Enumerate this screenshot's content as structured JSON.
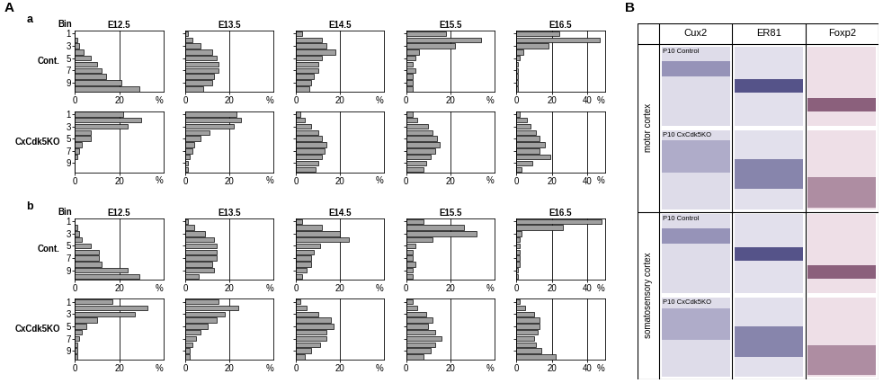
{
  "chart_data": [
    {
      "type": "bar",
      "orientation": "horizontal",
      "title": "E12.5",
      "categories": [
        "1",
        null,
        "3",
        null,
        "5",
        null,
        "7",
        null,
        "9",
        null
      ],
      "values": [
        0,
        1,
        2,
        4,
        7,
        10,
        12,
        14,
        21,
        29
      ],
      "xlim": [
        0,
        40
      ],
      "xticks": [
        0,
        20
      ],
      "xlabel": "%",
      "color": "#a0a0a0",
      "grid": true,
      "tick_labels": true
    },
    {
      "type": "bar",
      "orientation": "horizontal",
      "title": "E13.5",
      "categories": [
        "1",
        null,
        "3",
        null,
        "5",
        null,
        "7",
        null,
        "9",
        null
      ],
      "values": [
        1,
        3,
        7,
        12,
        14,
        15,
        15,
        13,
        12,
        8
      ],
      "xlim": [
        0,
        40
      ],
      "xticks": [
        0,
        20
      ],
      "xlabel": "%",
      "color": "#a0a0a0",
      "grid": true,
      "tick_labels": "x"
    },
    {
      "type": "bar",
      "orientation": "horizontal",
      "title": "E14.5",
      "categories": [
        "1",
        null,
        "3",
        null,
        "5",
        null,
        "7",
        null,
        "9",
        null
      ],
      "values": [
        3,
        12,
        14,
        18,
        12,
        10,
        10,
        8,
        7,
        6
      ],
      "xlim": [
        0,
        40
      ],
      "xticks": [
        0,
        20
      ],
      "xlabel": "%",
      "color": "#a0a0a0",
      "grid": true,
      "tick_labels": "x"
    },
    {
      "type": "bar",
      "orientation": "horizontal",
      "title": "E15.5",
      "categories": [
        "1",
        null,
        "3",
        null,
        "5",
        null,
        "7",
        null,
        "9",
        null
      ],
      "values": [
        18,
        34,
        22,
        6,
        4,
        3,
        4,
        3,
        3,
        3
      ],
      "xlim": [
        0,
        40
      ],
      "xticks": [
        0,
        20
      ],
      "xlabel": "%",
      "color": "#a0a0a0",
      "grid": true,
      "tick_labels": "x"
    },
    {
      "type": "bar",
      "orientation": "horizontal",
      "title": "E16.5",
      "categories": [
        "1",
        null,
        "3",
        null,
        "5",
        null,
        "7",
        null,
        "9",
        null
      ],
      "values": [
        24,
        47,
        18,
        4,
        2,
        1,
        1,
        1,
        1,
        1
      ],
      "xlim": [
        0,
        50
      ],
      "xticks": [
        0,
        20,
        40
      ],
      "xlabel": "%",
      "color": "#a0a0a0",
      "grid": true,
      "tick_labels": "x"
    },
    {
      "type": "bar",
      "orientation": "horizontal",
      "categories": [
        "1",
        null,
        "3",
        null,
        "5",
        null,
        "7",
        null,
        "9",
        null
      ],
      "values": [
        22,
        30,
        24,
        7,
        7,
        3,
        2,
        1,
        0,
        0
      ],
      "xlim": [
        0,
        40
      ],
      "xticks": [
        0,
        20
      ],
      "xlabel": "%",
      "color": "#a0a0a0",
      "grid": true,
      "tick_labels": true
    },
    {
      "type": "bar",
      "orientation": "horizontal",
      "categories": [
        "1",
        null,
        "3",
        null,
        "5",
        null,
        "7",
        null,
        "9",
        null
      ],
      "values": [
        23,
        25,
        22,
        11,
        7,
        4,
        3,
        2,
        1,
        1
      ],
      "xlim": [
        0,
        40
      ],
      "xticks": [
        0,
        20
      ],
      "xlabel": "%",
      "color": "#a0a0a0",
      "grid": true,
      "tick_labels": "x"
    },
    {
      "type": "bar",
      "orientation": "horizontal",
      "categories": [
        "1",
        null,
        "3",
        null,
        "5",
        null,
        "7",
        null,
        "9",
        null
      ],
      "values": [
        2,
        4,
        7,
        10,
        12,
        14,
        13,
        12,
        10,
        9
      ],
      "xlim": [
        0,
        40
      ],
      "xticks": [
        0,
        20
      ],
      "xlabel": "%",
      "color": "#a0a0a0",
      "grid": true,
      "tick_labels": "x"
    },
    {
      "type": "bar",
      "orientation": "horizontal",
      "categories": [
        "1",
        null,
        "3",
        null,
        "5",
        null,
        "7",
        null,
        "9",
        null
      ],
      "values": [
        3,
        5,
        10,
        12,
        14,
        15,
        13,
        11,
        9,
        8
      ],
      "xlim": [
        0,
        40
      ],
      "xticks": [
        0,
        20
      ],
      "xlabel": "%",
      "color": "#a0a0a0",
      "grid": true,
      "tick_labels": "x"
    },
    {
      "type": "bar",
      "orientation": "horizontal",
      "categories": [
        "1",
        null,
        "3",
        null,
        "5",
        null,
        "7",
        null,
        "9",
        null
      ],
      "values": [
        2,
        6,
        8,
        11,
        13,
        16,
        13,
        19,
        9,
        3
      ],
      "xlim": [
        0,
        50
      ],
      "xticks": [
        0,
        20,
        40
      ],
      "xlabel": "%",
      "color": "#a0a0a0",
      "grid": true,
      "tick_labels": "x"
    },
    {
      "type": "bar",
      "orientation": "horizontal",
      "title": "E12.5",
      "categories": [
        "1",
        null,
        "3",
        null,
        "5",
        null,
        "7",
        null,
        "9",
        null
      ],
      "values": [
        0,
        1,
        2,
        3,
        7,
        11,
        11,
        12,
        24,
        29
      ],
      "xlim": [
        0,
        40
      ],
      "xticks": [
        0,
        20
      ],
      "xlabel": "%",
      "color": "#a0a0a0",
      "grid": true,
      "tick_labels": true
    },
    {
      "type": "bar",
      "orientation": "horizontal",
      "title": "E13.5",
      "categories": [
        "1",
        null,
        "3",
        null,
        "5",
        null,
        "7",
        null,
        "9",
        null
      ],
      "values": [
        1,
        4,
        9,
        13,
        14,
        14,
        14,
        12,
        13,
        6
      ],
      "xlim": [
        0,
        40
      ],
      "xticks": [
        0,
        20
      ],
      "xlabel": "%",
      "color": "#a0a0a0",
      "grid": true,
      "tick_labels": "x"
    },
    {
      "type": "bar",
      "orientation": "horizontal",
      "title": "E14.5",
      "categories": [
        "1",
        null,
        "3",
        null,
        "5",
        null,
        "7",
        null,
        "9",
        null
      ],
      "values": [
        3,
        12,
        20,
        24,
        11,
        8,
        7,
        7,
        5,
        3
      ],
      "xlim": [
        0,
        40
      ],
      "xticks": [
        0,
        20
      ],
      "xlabel": "%",
      "color": "#a0a0a0",
      "grid": true,
      "tick_labels": "x"
    },
    {
      "type": "bar",
      "orientation": "horizontal",
      "title": "E15.5",
      "categories": [
        "1",
        null,
        "3",
        null,
        "5",
        null,
        "7",
        null,
        "9",
        null
      ],
      "values": [
        8,
        26,
        32,
        12,
        4,
        3,
        3,
        4,
        3,
        3
      ],
      "xlim": [
        0,
        40
      ],
      "xticks": [
        0,
        20
      ],
      "xlabel": "%",
      "color": "#a0a0a0",
      "grid": true,
      "tick_labels": "x"
    },
    {
      "type": "bar",
      "orientation": "horizontal",
      "title": "E16.5",
      "categories": [
        "1",
        null,
        "3",
        null,
        "5",
        null,
        "7",
        null,
        "9",
        null
      ],
      "values": [
        48,
        26,
        3,
        2,
        2,
        2,
        2,
        2,
        1,
        1
      ],
      "xlim": [
        0,
        50
      ],
      "xticks": [
        0,
        20,
        40
      ],
      "xlabel": "%",
      "color": "#a0a0a0",
      "grid": true,
      "tick_labels": "x"
    },
    {
      "type": "bar",
      "orientation": "horizontal",
      "categories": [
        "1",
        null,
        "3",
        null,
        "5",
        null,
        "7",
        null,
        "9",
        null
      ],
      "values": [
        17,
        33,
        27,
        10,
        5,
        3,
        2,
        1,
        1,
        1
      ],
      "xlim": [
        0,
        40
      ],
      "xticks": [
        0,
        20
      ],
      "xlabel": "%",
      "color": "#a0a0a0",
      "grid": true,
      "tick_labels": true
    },
    {
      "type": "bar",
      "orientation": "horizontal",
      "categories": [
        "1",
        null,
        "3",
        null,
        "5",
        null,
        "7",
        null,
        "9",
        null
      ],
      "values": [
        15,
        24,
        18,
        14,
        10,
        7,
        5,
        3,
        2,
        2
      ],
      "xlim": [
        0,
        40
      ],
      "xticks": [
        0,
        20
      ],
      "xlabel": "%",
      "color": "#a0a0a0",
      "grid": true,
      "tick_labels": "x"
    },
    {
      "type": "bar",
      "orientation": "horizontal",
      "categories": [
        "1",
        null,
        "3",
        null,
        "5",
        null,
        "7",
        null,
        "9",
        null
      ],
      "values": [
        2,
        5,
        10,
        16,
        17,
        14,
        14,
        11,
        7,
        4
      ],
      "xlim": [
        0,
        40
      ],
      "xticks": [
        0,
        20
      ],
      "xlabel": "%",
      "color": "#a0a0a0",
      "grid": true,
      "tick_labels": "x"
    },
    {
      "type": "bar",
      "orientation": "horizontal",
      "categories": [
        "1",
        null,
        "3",
        null,
        "5",
        null,
        "7",
        null,
        "9",
        null
      ],
      "values": [
        3,
        5,
        9,
        12,
        10,
        13,
        16,
        13,
        11,
        8
      ],
      "xlim": [
        0,
        40
      ],
      "xticks": [
        0,
        20
      ],
      "xlabel": "%",
      "color": "#a0a0a0",
      "grid": true,
      "tick_labels": "x"
    },
    {
      "type": "bar",
      "orientation": "horizontal",
      "categories": [
        "1",
        null,
        "3",
        null,
        "5",
        null,
        "7",
        null,
        "9",
        null
      ],
      "values": [
        2,
        5,
        10,
        13,
        13,
        12,
        10,
        11,
        14,
        22
      ],
      "xlim": [
        0,
        50
      ],
      "xticks": [
        0,
        20,
        40
      ],
      "xlabel": "%",
      "color": "#a0a0a0",
      "grid": true,
      "tick_labels": "x"
    }
  ],
  "panel_A": {
    "label": "A",
    "subpanels": [
      {
        "label": "a",
        "bin_label": "Bin",
        "row_labels": [
          "Cont.",
          "CxCdk5KO"
        ]
      },
      {
        "label": "b",
        "bin_label": "Bin",
        "row_labels": [
          "Cont.",
          "CxCdk5KO"
        ]
      }
    ]
  },
  "panel_B": {
    "label": "B",
    "columns": [
      "Cux2",
      "ER81",
      "Foxp2"
    ],
    "regions": [
      {
        "name": "motor cortex",
        "rows": [
          "P10 Control",
          "P10 CxCdk5KO"
        ]
      },
      {
        "name": "somatosensory cortex",
        "rows": [
          "P10 Control",
          "P10 CxCdk5KO"
        ]
      }
    ]
  }
}
